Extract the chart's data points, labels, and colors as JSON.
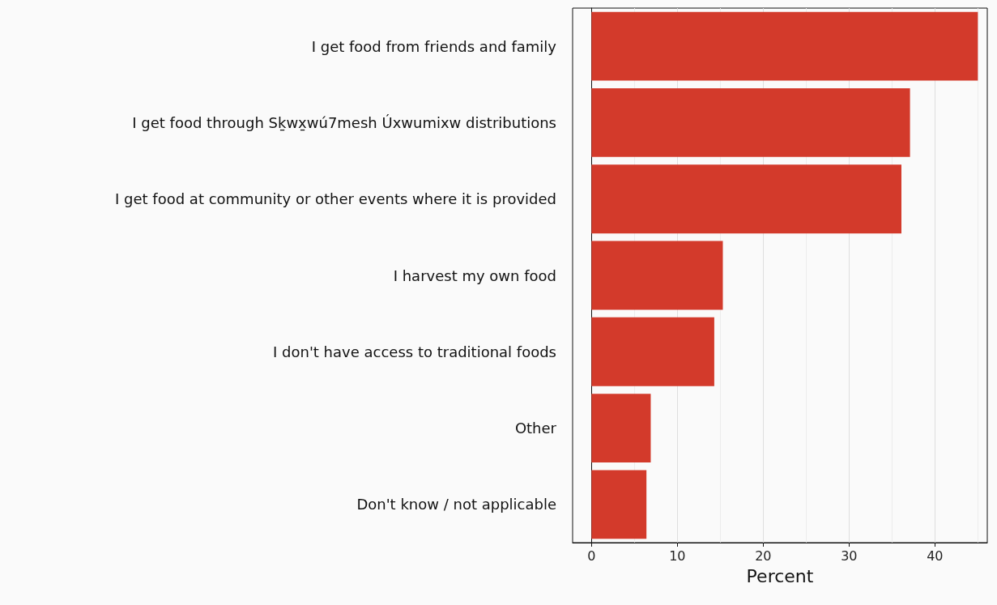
{
  "chart_data": {
    "type": "bar",
    "orientation": "horizontal",
    "xlabel": "Percent",
    "categories": [
      "I get food from friends and family",
      "I get food through Sḵwx̱wú7mesh Úxwumixw distributions",
      "I get food at community or other events where it is provided",
      "I harvest my own food",
      "I don't have access to traditional foods",
      "Other",
      "Don't know / not applicable"
    ],
    "values": [
      45.0,
      37.1,
      36.1,
      15.3,
      14.3,
      6.9,
      6.4
    ],
    "color": "#d33a2b",
    "xlim": [
      -2.2,
      46.1
    ],
    "xticks": [
      0,
      10,
      20,
      30,
      40
    ],
    "grid": "x"
  }
}
